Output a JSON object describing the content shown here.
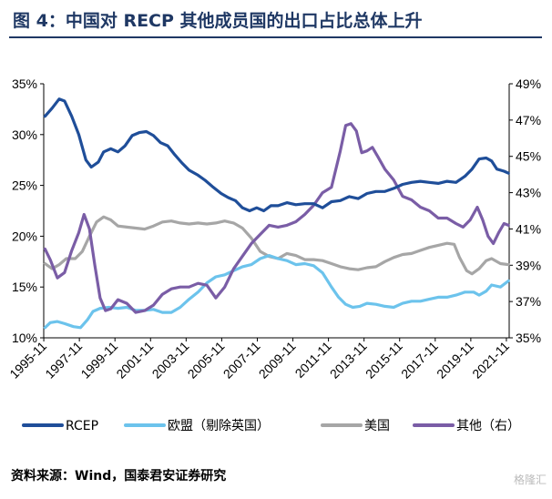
{
  "figure": {
    "title": "图 4：中国对 RECP 其他成员国的出口占比总体上升",
    "source": "资料来源：Wind，国泰君安证券研究",
    "watermark": "格隆汇"
  },
  "chart_data": {
    "type": "line",
    "title": "",
    "left_axis": {
      "min": 10,
      "max": 35,
      "step": 5,
      "ticks": [
        "10%",
        "15%",
        "20%",
        "25%",
        "30%",
        "35%"
      ]
    },
    "right_axis": {
      "min": 35,
      "max": 49,
      "step": 2,
      "ticks": [
        "35%",
        "37%",
        "39%",
        "41%",
        "43%",
        "45%",
        "47%",
        "49%"
      ]
    },
    "x_ticks": [
      "1995-11",
      "1997-11",
      "1999-11",
      "2001-11",
      "2003-11",
      "2005-11",
      "2007-11",
      "2009-11",
      "2011-11",
      "2013-11",
      "2015-11",
      "2017-11",
      "2019-11",
      "2021-11"
    ],
    "x_range": [
      1995.83,
      2021.99
    ],
    "legend_position": "bottom",
    "series": [
      {
        "name": "RCEP",
        "axis": "left",
        "color": "#1f4e99",
        "points": [
          [
            1995.9,
            31.8
          ],
          [
            1996.3,
            32.6
          ],
          [
            1996.7,
            33.5
          ],
          [
            1997.0,
            33.3
          ],
          [
            1997.4,
            31.8
          ],
          [
            1997.8,
            30.0
          ],
          [
            1998.2,
            27.5
          ],
          [
            1998.5,
            26.8
          ],
          [
            1998.9,
            27.3
          ],
          [
            1999.2,
            28.3
          ],
          [
            1999.6,
            28.6
          ],
          [
            2000.0,
            28.3
          ],
          [
            2000.4,
            28.9
          ],
          [
            2000.8,
            29.9
          ],
          [
            2001.2,
            30.2
          ],
          [
            2001.6,
            30.3
          ],
          [
            2002.0,
            29.9
          ],
          [
            2002.4,
            29.2
          ],
          [
            2002.8,
            28.9
          ],
          [
            2003.2,
            28.0
          ],
          [
            2003.6,
            27.2
          ],
          [
            2004.0,
            26.5
          ],
          [
            2004.5,
            26.0
          ],
          [
            2004.9,
            25.5
          ],
          [
            2005.3,
            24.9
          ],
          [
            2005.8,
            24.2
          ],
          [
            2006.2,
            23.8
          ],
          [
            2006.6,
            23.5
          ],
          [
            2007.0,
            22.8
          ],
          [
            2007.4,
            22.5
          ],
          [
            2007.8,
            22.8
          ],
          [
            2008.2,
            22.5
          ],
          [
            2008.6,
            23.0
          ],
          [
            2009.0,
            23.0
          ],
          [
            2009.5,
            23.3
          ],
          [
            2010.0,
            23.1
          ],
          [
            2010.5,
            23.2
          ],
          [
            2011.0,
            23.2
          ],
          [
            2011.5,
            22.8
          ],
          [
            2012.0,
            23.4
          ],
          [
            2012.5,
            23.5
          ],
          [
            2013.0,
            23.9
          ],
          [
            2013.5,
            23.7
          ],
          [
            2014.0,
            24.2
          ],
          [
            2014.5,
            24.4
          ],
          [
            2015.0,
            24.4
          ],
          [
            2015.5,
            24.7
          ],
          [
            2016.0,
            25.1
          ],
          [
            2016.5,
            25.3
          ],
          [
            2017.0,
            25.4
          ],
          [
            2017.5,
            25.3
          ],
          [
            2018.0,
            25.2
          ],
          [
            2018.5,
            25.4
          ],
          [
            2019.0,
            25.3
          ],
          [
            2019.5,
            25.9
          ],
          [
            2019.9,
            26.6
          ],
          [
            2020.3,
            27.6
          ],
          [
            2020.7,
            27.7
          ],
          [
            2021.0,
            27.4
          ],
          [
            2021.3,
            26.6
          ],
          [
            2021.7,
            26.4
          ],
          [
            2021.95,
            26.2
          ]
        ]
      },
      {
        "name": "欧盟（剔除英国）",
        "axis": "left",
        "color": "#6cc3ec",
        "points": [
          [
            1995.9,
            11.0
          ],
          [
            1996.2,
            11.5
          ],
          [
            1996.6,
            11.6
          ],
          [
            1997.0,
            11.4
          ],
          [
            1997.5,
            11.1
          ],
          [
            1997.9,
            11.0
          ],
          [
            1998.3,
            11.8
          ],
          [
            1998.6,
            12.6
          ],
          [
            1999.0,
            12.9
          ],
          [
            1999.5,
            13.0
          ],
          [
            2000.0,
            12.9
          ],
          [
            2000.5,
            13.0
          ],
          [
            2001.0,
            12.7
          ],
          [
            2001.5,
            12.7
          ],
          [
            2002.0,
            12.8
          ],
          [
            2002.5,
            12.5
          ],
          [
            2003.0,
            12.5
          ],
          [
            2003.5,
            13.0
          ],
          [
            2004.0,
            13.8
          ],
          [
            2004.5,
            14.5
          ],
          [
            2005.0,
            15.4
          ],
          [
            2005.5,
            16.0
          ],
          [
            2006.0,
            16.2
          ],
          [
            2006.5,
            16.6
          ],
          [
            2007.0,
            17.0
          ],
          [
            2007.5,
            17.2
          ],
          [
            2008.0,
            17.8
          ],
          [
            2008.5,
            18.1
          ],
          [
            2009.0,
            17.8
          ],
          [
            2009.5,
            17.6
          ],
          [
            2010.0,
            17.2
          ],
          [
            2010.5,
            17.3
          ],
          [
            2011.0,
            17.1
          ],
          [
            2011.5,
            16.4
          ],
          [
            2012.0,
            15.0
          ],
          [
            2012.4,
            14.0
          ],
          [
            2012.8,
            13.3
          ],
          [
            2013.2,
            13.0
          ],
          [
            2013.6,
            13.1
          ],
          [
            2014.0,
            13.4
          ],
          [
            2014.5,
            13.3
          ],
          [
            2015.0,
            13.1
          ],
          [
            2015.5,
            13.0
          ],
          [
            2016.0,
            13.4
          ],
          [
            2016.5,
            13.6
          ],
          [
            2017.0,
            13.6
          ],
          [
            2017.5,
            13.8
          ],
          [
            2018.0,
            14.0
          ],
          [
            2018.5,
            14.0
          ],
          [
            2019.0,
            14.2
          ],
          [
            2019.5,
            14.5
          ],
          [
            2020.0,
            14.5
          ],
          [
            2020.3,
            14.2
          ],
          [
            2020.7,
            14.6
          ],
          [
            2021.0,
            15.2
          ],
          [
            2021.5,
            15.0
          ],
          [
            2021.95,
            15.6
          ]
        ]
      },
      {
        "name": "美国",
        "axis": "left",
        "color": "#a6a6a6",
        "points": [
          [
            1995.9,
            17.3
          ],
          [
            1996.3,
            16.8
          ],
          [
            1996.7,
            17.2
          ],
          [
            1997.1,
            17.8
          ],
          [
            1997.6,
            17.8
          ],
          [
            1998.0,
            18.5
          ],
          [
            1998.4,
            20.0
          ],
          [
            1998.8,
            21.4
          ],
          [
            1999.2,
            21.9
          ],
          [
            1999.6,
            21.6
          ],
          [
            2000.0,
            21.0
          ],
          [
            2000.5,
            20.9
          ],
          [
            2001.0,
            20.8
          ],
          [
            2001.5,
            20.7
          ],
          [
            2002.0,
            21.0
          ],
          [
            2002.5,
            21.4
          ],
          [
            2003.0,
            21.5
          ],
          [
            2003.5,
            21.3
          ],
          [
            2004.0,
            21.2
          ],
          [
            2004.5,
            21.3
          ],
          [
            2005.0,
            21.2
          ],
          [
            2005.5,
            21.3
          ],
          [
            2006.0,
            21.5
          ],
          [
            2006.5,
            21.3
          ],
          [
            2007.0,
            20.8
          ],
          [
            2007.5,
            19.8
          ],
          [
            2008.0,
            18.5
          ],
          [
            2008.5,
            18.0
          ],
          [
            2009.0,
            17.8
          ],
          [
            2009.5,
            18.3
          ],
          [
            2010.0,
            18.1
          ],
          [
            2010.5,
            17.7
          ],
          [
            2011.0,
            17.7
          ],
          [
            2011.5,
            17.6
          ],
          [
            2012.0,
            17.3
          ],
          [
            2012.5,
            17.0
          ],
          [
            2013.0,
            16.8
          ],
          [
            2013.5,
            16.7
          ],
          [
            2014.0,
            16.9
          ],
          [
            2014.5,
            17.0
          ],
          [
            2015.0,
            17.5
          ],
          [
            2015.5,
            17.9
          ],
          [
            2016.0,
            18.2
          ],
          [
            2016.5,
            18.3
          ],
          [
            2017.0,
            18.6
          ],
          [
            2017.5,
            18.9
          ],
          [
            2018.0,
            19.1
          ],
          [
            2018.5,
            19.3
          ],
          [
            2018.9,
            19.2
          ],
          [
            2019.2,
            17.9
          ],
          [
            2019.6,
            16.6
          ],
          [
            2019.9,
            16.3
          ],
          [
            2020.3,
            16.8
          ],
          [
            2020.7,
            17.6
          ],
          [
            2021.0,
            17.8
          ],
          [
            2021.5,
            17.3
          ],
          [
            2021.95,
            17.2
          ]
        ]
      },
      {
        "name": "其他（右）",
        "axis": "right",
        "color": "#7a5da6",
        "points": [
          [
            1995.9,
            39.9
          ],
          [
            1996.2,
            39.3
          ],
          [
            1996.6,
            38.3
          ],
          [
            1997.0,
            38.6
          ],
          [
            1997.4,
            39.8
          ],
          [
            1997.8,
            40.8
          ],
          [
            1998.1,
            41.8
          ],
          [
            1998.4,
            41.0
          ],
          [
            1998.7,
            39.0
          ],
          [
            1999.0,
            37.2
          ],
          [
            1999.3,
            36.5
          ],
          [
            1999.6,
            36.6
          ],
          [
            2000.0,
            37.1
          ],
          [
            2000.5,
            36.9
          ],
          [
            2001.0,
            36.4
          ],
          [
            2001.5,
            36.5
          ],
          [
            2002.0,
            36.8
          ],
          [
            2002.5,
            37.4
          ],
          [
            2003.0,
            37.7
          ],
          [
            2003.5,
            37.8
          ],
          [
            2004.0,
            37.8
          ],
          [
            2004.5,
            38.0
          ],
          [
            2005.0,
            37.9
          ],
          [
            2005.5,
            37.2
          ],
          [
            2006.0,
            37.8
          ],
          [
            2006.5,
            38.8
          ],
          [
            2007.0,
            39.5
          ],
          [
            2007.5,
            40.2
          ],
          [
            2008.0,
            40.7
          ],
          [
            2008.5,
            41.2
          ],
          [
            2009.0,
            41.1
          ],
          [
            2009.5,
            41.2
          ],
          [
            2010.0,
            41.4
          ],
          [
            2010.5,
            41.8
          ],
          [
            2011.0,
            42.3
          ],
          [
            2011.5,
            43.0
          ],
          [
            2012.0,
            43.3
          ],
          [
            2012.5,
            45.3
          ],
          [
            2012.8,
            46.7
          ],
          [
            2013.1,
            46.8
          ],
          [
            2013.4,
            46.4
          ],
          [
            2013.7,
            45.2
          ],
          [
            2014.0,
            45.3
          ],
          [
            2014.3,
            45.5
          ],
          [
            2014.6,
            45.0
          ],
          [
            2015.0,
            44.3
          ],
          [
            2015.5,
            43.7
          ],
          [
            2016.0,
            42.8
          ],
          [
            2016.5,
            42.6
          ],
          [
            2017.0,
            42.2
          ],
          [
            2017.5,
            42.0
          ],
          [
            2018.0,
            41.6
          ],
          [
            2018.5,
            41.6
          ],
          [
            2019.0,
            41.3
          ],
          [
            2019.4,
            41.1
          ],
          [
            2019.8,
            41.5
          ],
          [
            2020.2,
            42.2
          ],
          [
            2020.5,
            41.5
          ],
          [
            2020.8,
            40.6
          ],
          [
            2021.1,
            40.2
          ],
          [
            2021.4,
            40.8
          ],
          [
            2021.7,
            41.3
          ],
          [
            2021.95,
            41.2
          ]
        ]
      }
    ]
  }
}
